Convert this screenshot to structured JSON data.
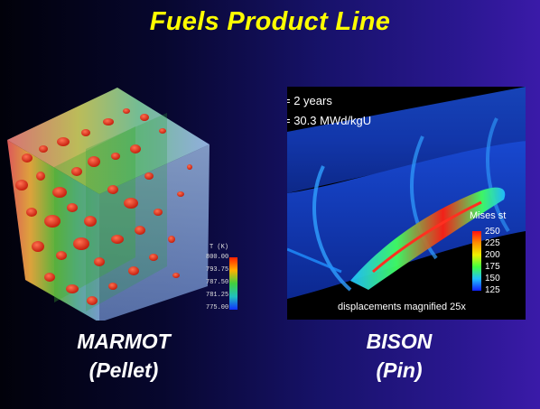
{
  "title": "Fuels Product Line",
  "marmot": {
    "name": "MARMOT",
    "subtitle": "(Pellet)",
    "colorbar": {
      "title": "T (K)",
      "ticks": [
        "800.00",
        "793.75",
        "787.50",
        "781.25",
        "775.00"
      ]
    }
  },
  "bison": {
    "name": "BISON",
    "subtitle": "(Pin)",
    "time_text": "= 2 years",
    "burnup_text": "= 30.3 MWd/kgU",
    "colorbar": {
      "title": "Mises st",
      "ticks": [
        "250",
        "225",
        "200",
        "175",
        "150",
        "125"
      ]
    },
    "footnote": "displacements magnified 25x"
  },
  "colors": {
    "title": "#ffff00",
    "label": "#ffffff"
  }
}
